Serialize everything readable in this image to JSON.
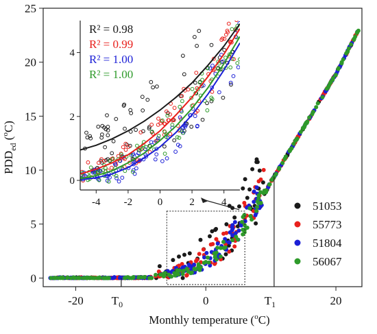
{
  "chart_data": {
    "type": "scatter",
    "title": "",
    "xlabel": {
      "main": "Monthly temperature (",
      "sup": "o",
      "tail": "C)"
    },
    "ylabel": {
      "main": "PDD",
      "sub": "ed",
      "mid": " (",
      "sup": "o",
      "tail": "C)"
    },
    "xlim": [
      -25,
      24
    ],
    "ylim": [
      -0.8,
      25
    ],
    "xticks": [
      -20,
      0,
      20
    ],
    "yticks": [
      0,
      5,
      10,
      15,
      20,
      25
    ],
    "markers": [
      {
        "label": "T",
        "sub": "0",
        "x": -13
      },
      {
        "label": "T",
        "sub": "1",
        "x": 10.5
      }
    ],
    "zoom_box": {
      "x": [
        -6,
        6
      ],
      "y": [
        -0.6,
        6.2
      ]
    },
    "series": [
      {
        "name": "51053",
        "color": "#1a1a1a",
        "spread": 1.0
      },
      {
        "name": "55773",
        "color": "#e8201c",
        "spread": 0.55
      },
      {
        "name": "51804",
        "color": "#1b1fd6",
        "spread": 0.45
      },
      {
        "name": "56067",
        "color": "#2e9a2a",
        "spread": 0.3
      }
    ],
    "main_curve": {
      "x": [
        -24,
        -15,
        -10,
        -8,
        -6,
        -4,
        -2,
        0,
        2,
        4,
        6,
        8,
        10,
        12,
        16,
        20,
        24
      ],
      "y": [
        0,
        0,
        0.02,
        0.05,
        0.12,
        0.3,
        0.65,
        1.2,
        2.0,
        3.1,
        4.6,
        6.6,
        8.9,
        10.9,
        14.9,
        18.9,
        23.6
      ]
    },
    "inset": {
      "xlim": [
        -5,
        5
      ],
      "ylim": [
        -0.3,
        5
      ],
      "xticks": [
        -4,
        -2,
        0,
        2,
        4
      ],
      "yticks": [
        0,
        2,
        4
      ],
      "fits": [
        {
          "series": "51053",
          "r2": "R² = 0.98",
          "x": [
            -5,
            -4,
            -3,
            -2,
            -1,
            0,
            1,
            2,
            3,
            4,
            5
          ],
          "y": [
            0.95,
            1.1,
            1.3,
            1.55,
            1.85,
            2.2,
            2.6,
            3.05,
            3.6,
            4.2,
            4.9
          ]
        },
        {
          "series": "55773",
          "r2": "R² = 0.99",
          "x": [
            -5,
            -4,
            -3,
            -2,
            -1,
            0,
            1,
            2,
            3,
            4,
            5
          ],
          "y": [
            0.2,
            0.35,
            0.55,
            0.8,
            1.15,
            1.55,
            2.05,
            2.6,
            3.25,
            3.95,
            4.75
          ]
        },
        {
          "series": "51804",
          "r2": "R² = 1.00",
          "x": [
            -5,
            -4,
            -3,
            -2,
            -1,
            0,
            1,
            2,
            3,
            4,
            5
          ],
          "y": [
            0.02,
            0.08,
            0.2,
            0.4,
            0.7,
            1.05,
            1.5,
            2.05,
            2.7,
            3.45,
            4.3
          ]
        },
        {
          "series": "56067",
          "r2": "R² = 1.00",
          "x": [
            -5,
            -4,
            -3,
            -2,
            -1,
            0,
            1,
            2,
            3,
            4,
            5
          ],
          "y": [
            0.05,
            0.15,
            0.3,
            0.55,
            0.85,
            1.25,
            1.7,
            2.25,
            2.9,
            3.65,
            4.5
          ]
        }
      ]
    }
  }
}
